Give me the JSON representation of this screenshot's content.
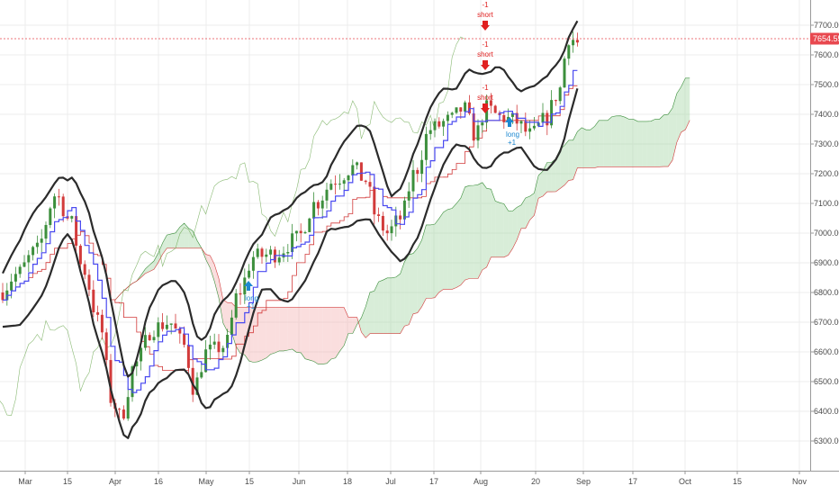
{
  "chart_data": {
    "type": "candlestick-with-indicators",
    "y_axis": {
      "ticks": [
        "6300.00",
        "6400.00",
        "6500.00",
        "6600.00",
        "6700.00",
        "6800.00",
        "6900.00",
        "7000.00",
        "7100.00",
        "7200.00",
        "7300.00",
        "7400.00",
        "7500.00",
        "7600.00",
        "7700.00"
      ],
      "ylim": [
        6230,
        7770
      ],
      "side": "right"
    },
    "x_axis": {
      "ticks": [
        "Mar",
        "15",
        "Apr",
        "16",
        "May",
        "15",
        "Jun",
        "18",
        "Jul",
        "17",
        "Aug",
        "20",
        "Sep",
        "17",
        "Oct",
        "15",
        "Nov"
      ]
    },
    "grid": true,
    "last_price": {
      "value": 7654.55,
      "label": "7654.55",
      "color": "#e8484f"
    },
    "annotations": [
      {
        "text": "-1",
        "color": "#e02020"
      },
      {
        "text": "short",
        "color": "#e02020"
      },
      {
        "text": "-1",
        "color": "#e02020"
      },
      {
        "text": "short",
        "color": "#e02020"
      },
      {
        "text": "-1",
        "color": "#e02020"
      },
      {
        "text": "short",
        "color": "#e02020"
      },
      {
        "text": "long",
        "color": "#1e88d0"
      },
      {
        "text": "+1",
        "color": "#1e88d0"
      },
      {
        "text": "long",
        "color": "#1e88d0"
      },
      {
        "text": "+1",
        "color": "#1e88d0"
      }
    ],
    "series_colors": {
      "up": "#3c8f3c",
      "down": "#d23b3b",
      "envelope": "#2b2b2b",
      "tenkan": "#4a4af0",
      "kijun": "#d23b3b",
      "lagging": "#6aa84f",
      "cloud_up": "#a8d8a8",
      "cloud_down": "#f5b5b5"
    }
  }
}
